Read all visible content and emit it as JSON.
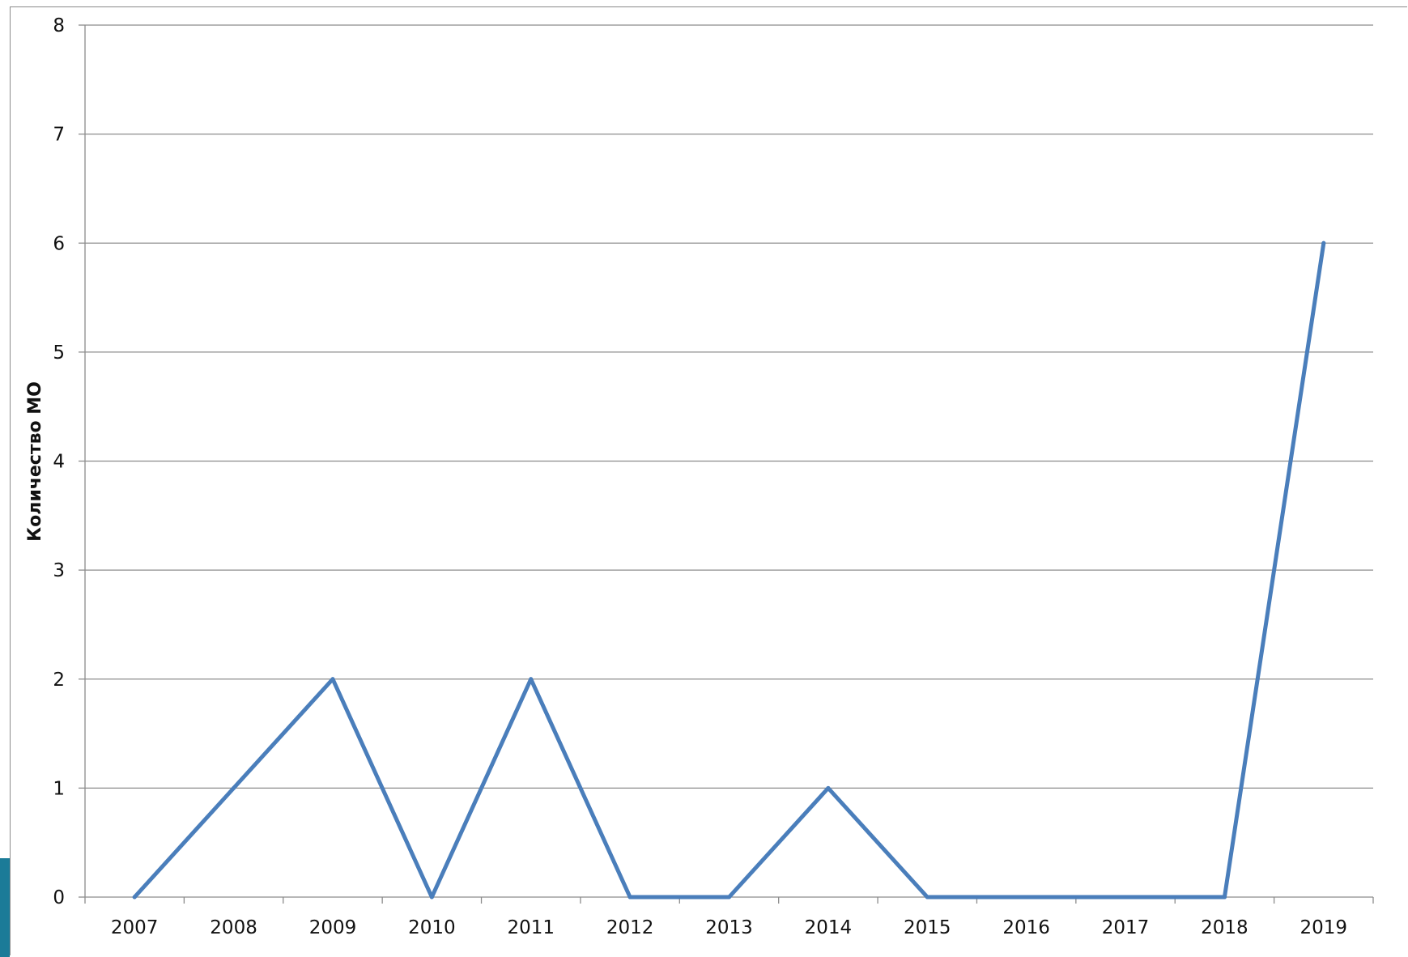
{
  "chart_data": {
    "type": "line",
    "title": "",
    "xlabel": "",
    "ylabel": "Количество МО",
    "categories": [
      "2007",
      "2008",
      "2009",
      "2010",
      "2011",
      "2012",
      "2013",
      "2014",
      "2015",
      "2016",
      "2017",
      "2018",
      "2019"
    ],
    "series": [
      {
        "values": [
          0,
          1,
          2,
          0,
          2,
          0,
          0,
          1,
          0,
          0,
          0,
          0,
          6
        ]
      }
    ],
    "ylim": [
      0,
      8
    ],
    "yticks": [
      0,
      1,
      2,
      3,
      4,
      5,
      6,
      7,
      8
    ],
    "grid": true,
    "legend": "none",
    "colors": {
      "line": "#4a7ebb",
      "grid": "#8c8c8c",
      "axis": "#8c8c8c"
    }
  }
}
